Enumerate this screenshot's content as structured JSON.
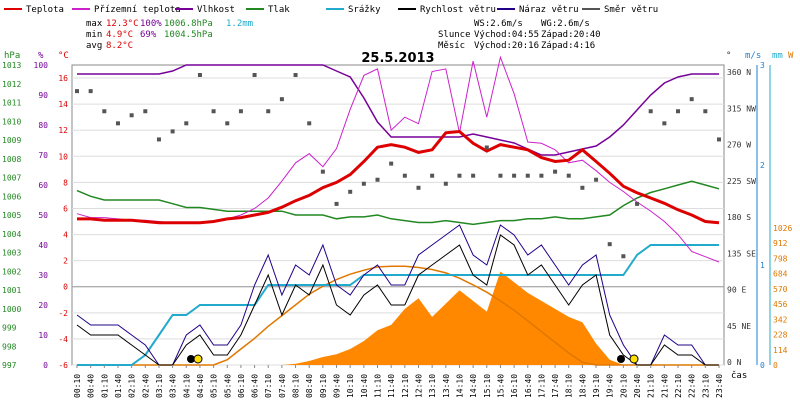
{
  "legend": [
    {
      "label": "Teplota",
      "color": "#dd0000"
    },
    {
      "label": "Přízemní teplota",
      "color": "#cc22cc"
    },
    {
      "label": "Vlhkost",
      "color": "#770099"
    },
    {
      "label": "Tlak",
      "color": "#228822"
    },
    {
      "label": "Srážky",
      "color": "#22aacc"
    },
    {
      "label": "Rychlost větru",
      "color": "#000000"
    },
    {
      "label": "Náraz větru",
      "color": "#220088"
    },
    {
      "label": "Směr větru",
      "color": "#555555"
    }
  ],
  "stats": {
    "max": {
      "label": "max",
      "temp": "12.3°C",
      "hum": "100%",
      "pres": "1006.8hPa",
      "rain": "1.2mm"
    },
    "min": {
      "label": "min",
      "temp": "4.9°C",
      "hum": "69%",
      "pres": "1004.5hPa"
    },
    "avg": {
      "label": "avg",
      "temp": "8.2°C"
    }
  },
  "wind_info": {
    "ws": "WS:2.6m/s",
    "wg": "WG:2.6m/s"
  },
  "sun": {
    "label": "Slunce",
    "rise": "Východ:04:55",
    "set": "Západ:20:40"
  },
  "moon": {
    "label": "Měsíc",
    "rise": "Východ:20:16",
    "set": "Západ:4:16"
  },
  "axes": {
    "hpa_unit": "hPa",
    "pct_unit": "%",
    "temp_unit": "°C",
    "deg_unit": "°",
    "ms_unit": "m/s",
    "w_unit": "W",
    "mm_unit": "mm",
    "x_label": "čas"
  },
  "chart_data": {
    "type": "line",
    "title": "25.5.2013",
    "x": [
      "00:10",
      "00:40",
      "01:10",
      "01:40",
      "02:10",
      "02:40",
      "03:10",
      "03:40",
      "04:10",
      "04:40",
      "05:10",
      "05:40",
      "06:10",
      "06:40",
      "07:10",
      "07:40",
      "08:10",
      "08:40",
      "09:10",
      "09:40",
      "10:10",
      "10:40",
      "11:10",
      "11:40",
      "12:10",
      "12:40",
      "13:10",
      "13:40",
      "14:10",
      "14:40",
      "15:10",
      "15:40",
      "16:10",
      "16:40",
      "17:10",
      "17:40",
      "18:10",
      "18:40",
      "19:10",
      "19:40",
      "20:10",
      "20:40",
      "21:10",
      "21:40",
      "22:10",
      "22:40",
      "23:10",
      "23:40"
    ],
    "axes_ticks": {
      "hpa": [
        "1013",
        "1012",
        "1011",
        "1010",
        "1009",
        "1008",
        "1007",
        "1006",
        "1005",
        "1004",
        "1003",
        "1002",
        "1001",
        "1000",
        "999",
        "998",
        "997"
      ],
      "pct": [
        "100",
        "90",
        "80",
        "70",
        "60",
        "50",
        "40",
        "30",
        "20",
        "10",
        "0"
      ],
      "temp": [
        "16",
        "14",
        "12",
        "10",
        "8",
        "6",
        "4",
        "2",
        "0",
        "-2",
        "-4",
        "-6"
      ],
      "dir": [
        "360 N",
        "315 NW",
        "270 W",
        "225 SW",
        "180 S",
        "135 SE",
        "90 E",
        "45 NE",
        "0 N"
      ],
      "ms": [
        "3",
        "2",
        "1",
        "0"
      ],
      "mm": [
        "3",
        "2",
        "1",
        "0"
      ],
      "w": [
        "1026",
        "912",
        "798",
        "684",
        "570",
        "456",
        "342",
        "228",
        "114",
        "0"
      ]
    },
    "series": [
      {
        "name": "Teplota",
        "unit": "°C",
        "values": [
          5.2,
          5.2,
          5.1,
          5.1,
          5.1,
          5.0,
          4.9,
          4.9,
          4.9,
          4.9,
          5.0,
          5.2,
          5.3,
          5.5,
          5.7,
          6.1,
          6.6,
          7.0,
          7.6,
          8.0,
          8.6,
          9.6,
          10.7,
          10.9,
          10.7,
          10.3,
          10.5,
          11.8,
          11.9,
          11.0,
          10.4,
          10.9,
          10.7,
          10.5,
          9.9,
          9.6,
          9.7,
          10.5,
          9.6,
          8.7,
          7.7,
          7.2,
          6.8,
          6.4,
          5.9,
          5.5,
          5.0,
          4.9
        ]
      },
      {
        "name": "Přízemní teplota",
        "unit": "°C",
        "values": [
          5.6,
          5.3,
          5.3,
          5.2,
          5.1,
          5.1,
          5.0,
          4.9,
          4.9,
          4.9,
          5.0,
          5.2,
          5.5,
          6.0,
          6.8,
          8.1,
          9.5,
          10.2,
          9.2,
          10.6,
          13.6,
          16.2,
          16.7,
          12.0,
          13.0,
          12.5,
          16.5,
          16.7,
          11.8,
          17.3,
          13.0,
          17.6,
          14.8,
          11.1,
          11.0,
          10.5,
          9.5,
          9.7,
          8.9,
          8.0,
          7.3,
          6.5,
          5.8,
          5.0,
          4.0,
          2.7,
          2.3,
          1.9
        ]
      },
      {
        "name": "Vlhkost",
        "unit": "%",
        "values": [
          97,
          97,
          97,
          97,
          97,
          97,
          97,
          98,
          100,
          100,
          100,
          100,
          100,
          100,
          100,
          100,
          100,
          100,
          100,
          98,
          96,
          89,
          81,
          76,
          76,
          76,
          76,
          76,
          76,
          77,
          76,
          75,
          74,
          72,
          70,
          70,
          71,
          72,
          73,
          76,
          80,
          85,
          90,
          94,
          96,
          97,
          97,
          97
        ]
      },
      {
        "name": "Tlak",
        "unit": "hPa",
        "values": [
          1006.3,
          1006.0,
          1005.8,
          1005.8,
          1005.8,
          1005.8,
          1005.8,
          1005.6,
          1005.4,
          1005.4,
          1005.3,
          1005.2,
          1005.2,
          1005.2,
          1005.2,
          1005.2,
          1005.0,
          1005.0,
          1005.0,
          1004.8,
          1004.9,
          1004.9,
          1005.0,
          1004.8,
          1004.7,
          1004.6,
          1004.6,
          1004.7,
          1004.6,
          1004.5,
          1004.6,
          1004.7,
          1004.7,
          1004.8,
          1004.8,
          1004.9,
          1004.8,
          1004.8,
          1004.9,
          1005.0,
          1005.5,
          1005.9,
          1006.2,
          1006.4,
          1006.6,
          1006.8,
          1006.6,
          1006.4
        ]
      },
      {
        "name": "Srážky",
        "unit": "mm",
        "values": [
          0,
          0,
          0,
          0,
          0,
          0.1,
          0.3,
          0.5,
          0.5,
          0.6,
          0.6,
          0.6,
          0.6,
          0.6,
          0.8,
          0.8,
          0.8,
          0.8,
          0.8,
          0.8,
          0.8,
          0.9,
          0.9,
          0.9,
          0.9,
          0.9,
          0.9,
          0.9,
          0.9,
          0.9,
          0.9,
          0.9,
          0.9,
          0.9,
          0.9,
          0.9,
          0.9,
          0.9,
          0.9,
          0.9,
          0.9,
          1.1,
          1.2,
          1.2,
          1.2,
          1.2,
          1.2,
          1.2
        ]
      },
      {
        "name": "Rychlost větru",
        "unit": "m/s",
        "values": [
          0.4,
          0.3,
          0.3,
          0.3,
          0.2,
          0.1,
          0.0,
          0.0,
          0.2,
          0.3,
          0.1,
          0.1,
          0.3,
          0.6,
          0.9,
          0.5,
          0.8,
          0.7,
          1.0,
          0.6,
          0.5,
          0.7,
          0.8,
          0.6,
          0.6,
          0.9,
          1.0,
          1.1,
          1.2,
          0.9,
          0.8,
          1.3,
          1.2,
          0.9,
          1.0,
          0.8,
          0.6,
          0.8,
          0.9,
          0.3,
          0.1,
          0.0,
          0.0,
          0.2,
          0.1,
          0.1,
          0.0,
          0.0
        ]
      },
      {
        "name": "Náraz větru",
        "unit": "m/s",
        "values": [
          0.5,
          0.4,
          0.4,
          0.4,
          0.3,
          0.2,
          0.0,
          0.0,
          0.3,
          0.4,
          0.2,
          0.2,
          0.4,
          0.8,
          1.1,
          0.7,
          1.0,
          0.9,
          1.2,
          0.8,
          0.7,
          0.9,
          1.0,
          0.8,
          0.8,
          1.1,
          1.2,
          1.3,
          1.4,
          1.1,
          1.0,
          1.4,
          1.3,
          1.1,
          1.2,
          1.0,
          0.8,
          1.0,
          1.1,
          0.5,
          0.2,
          0.0,
          0.0,
          0.3,
          0.2,
          0.2,
          0.0,
          0.0
        ]
      },
      {
        "name": "Směr větru",
        "unit": "°",
        "values": [
          340,
          340,
          315,
          300,
          310,
          315,
          280,
          290,
          300,
          360,
          315,
          300,
          315,
          360,
          315,
          330,
          360,
          300,
          240,
          200,
          215,
          225,
          230,
          250,
          235,
          220,
          235,
          225,
          235,
          235,
          270,
          235,
          235,
          235,
          235,
          240,
          235,
          220,
          230,
          150,
          135,
          200,
          315,
          300,
          315,
          330,
          315,
          280
        ]
      },
      {
        "name": "Sluneční záření",
        "unit": "W",
        "values": [
          0,
          0,
          0,
          0,
          0,
          0,
          0,
          0,
          0,
          0,
          0,
          0,
          0,
          0,
          0,
          0,
          10,
          30,
          60,
          80,
          120,
          180,
          260,
          300,
          420,
          500,
          360,
          460,
          560,
          480,
          400,
          700,
          620,
          540,
          480,
          420,
          360,
          320,
          160,
          40,
          0,
          0,
          0,
          0,
          0,
          0,
          0,
          0
        ]
      },
      {
        "name": "Teoretické záření",
        "unit": "W",
        "values": [
          0,
          0,
          0,
          0,
          0,
          0,
          0,
          0,
          0,
          0,
          0,
          40,
          120,
          200,
          290,
          370,
          450,
          530,
          590,
          640,
          680,
          710,
          735,
          740,
          740,
          730,
          715,
          690,
          650,
          600,
          545,
          480,
          410,
          330,
          250,
          170,
          90,
          20,
          0,
          0,
          0,
          0,
          0,
          0,
          0,
          0,
          0,
          0
        ]
      }
    ]
  }
}
